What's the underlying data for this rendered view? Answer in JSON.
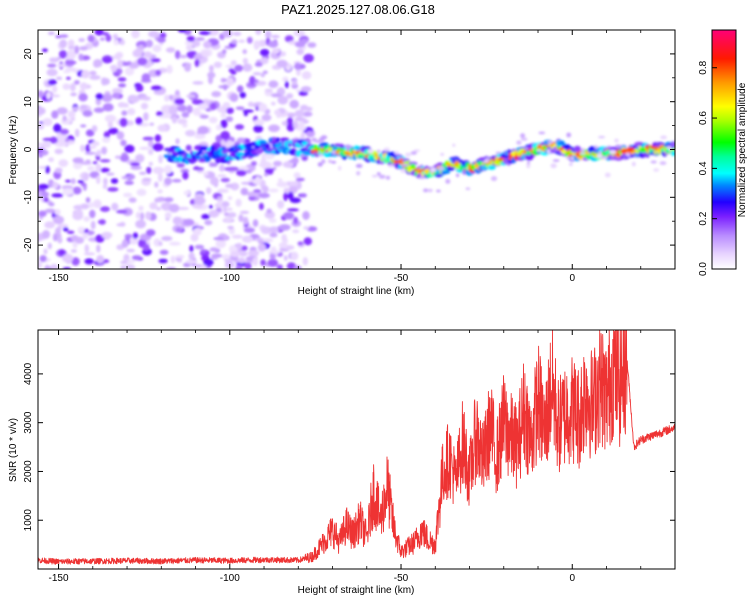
{
  "title": "PAZ1.2025.127.08.06.G18",
  "chart_data": [
    {
      "type": "heatmap",
      "xlabel": "Height of straight line (km)",
      "ylabel": "Frequency (Hz)",
      "xlim": [
        -156,
        30
      ],
      "ylim": [
        -25,
        25
      ],
      "xticks": [
        -150,
        -100,
        -50,
        0
      ],
      "yticks": [
        -20,
        -10,
        0,
        10,
        20
      ],
      "colorbar": {
        "label": "Normalized spectral amplitude",
        "range": [
          0,
          0.95
        ],
        "ticks": [
          0.0,
          0.2,
          0.4,
          0.6,
          0.8
        ],
        "colors": [
          "#ffffff",
          "#cc99ff",
          "#8800ff",
          "#0000ff",
          "#00ffff",
          "#00ff00",
          "#ffff00",
          "#ff8800",
          "#ff0000",
          "#ff0088"
        ]
      },
      "noise_region_km": [
        -156,
        -76
      ],
      "ridge": {
        "height_km": [
          -115,
          -100,
          -85,
          -76,
          -70,
          -60,
          -52,
          -45,
          -40,
          -35,
          -30,
          -20,
          -10,
          -5,
          0,
          10,
          20,
          30
        ],
        "frequency_hz": [
          -1,
          -1,
          1,
          0,
          0,
          -1,
          -2,
          -4.5,
          -5,
          -3,
          -4,
          -2,
          0,
          1,
          -1,
          -1,
          0,
          0
        ]
      }
    },
    {
      "type": "line",
      "xlabel": "Height of straight line (km)",
      "ylabel": "SNR (10 * v/v)",
      "xlim": [
        -156,
        30
      ],
      "ylim": [
        0,
        4900
      ],
      "xticks": [
        -150,
        -100,
        -50,
        0
      ],
      "yticks": [
        1000,
        2000,
        3000,
        4000
      ],
      "color": "#ee3333",
      "series": [
        {
          "name": "",
          "x": [
            -156,
            -150,
            -140,
            -130,
            -120,
            -110,
            -100,
            -90,
            -80,
            -76,
            -72,
            -70,
            -68,
            -66,
            -64,
            -62,
            -60,
            -58,
            -56,
            -54,
            -52,
            -50,
            -48,
            -46,
            -44,
            -42,
            -40,
            -38,
            -36,
            -34,
            -32,
            -30,
            -28,
            -26,
            -24,
            -22,
            -20,
            -18,
            -16,
            -14,
            -12,
            -10,
            -8,
            -6,
            -4,
            -2,
            0,
            2,
            4,
            6,
            8,
            10,
            12,
            14,
            16,
            18,
            20,
            22,
            24,
            26,
            28,
            30
          ],
          "y": [
            180,
            150,
            160,
            170,
            160,
            180,
            170,
            190,
            180,
            250,
            600,
            800,
            550,
            900,
            700,
            1000,
            650,
            1600,
            1000,
            1700,
            800,
            350,
            450,
            550,
            800,
            600,
            500,
            1900,
            2300,
            1800,
            2600,
            1900,
            2800,
            2200,
            2900,
            2300,
            3000,
            2700,
            2500,
            3300,
            2600,
            3500,
            2800,
            3800,
            2900,
            3200,
            3300,
            3100,
            3700,
            3300,
            3900,
            3500,
            4100,
            3800,
            4300,
            2500,
            2650,
            2700,
            2750,
            2800,
            2850,
            2900
          ]
        }
      ]
    }
  ]
}
